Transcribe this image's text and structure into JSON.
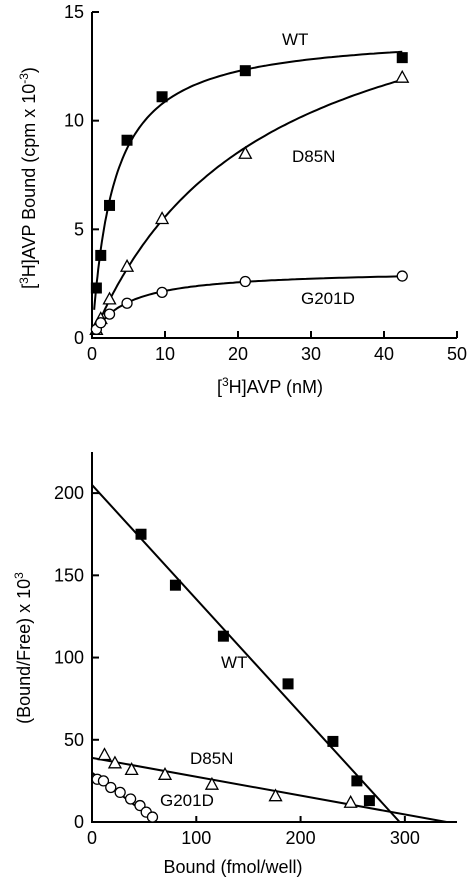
{
  "chart_data": [
    {
      "type": "scatter",
      "xlabel": "[3H]AVP (nM)",
      "ylabel": "[3H]AVP Bound (cpm x 10-3)",
      "xlim": [
        0,
        50
      ],
      "ylim": [
        0,
        15
      ],
      "x_ticks": [
        "0",
        "10",
        "20",
        "30",
        "40",
        "50"
      ],
      "y_ticks": [
        "0",
        "5",
        "10",
        "15"
      ],
      "grid": false,
      "series": [
        {
          "name": "WT",
          "marker": "filled-square",
          "x": [
            0.6,
            1.2,
            2.4,
            4.8,
            9.6,
            21,
            42.5
          ],
          "y": [
            2.3,
            3.8,
            6.1,
            9.1,
            11.1,
            12.3,
            12.9
          ],
          "fit": "saturation"
        },
        {
          "name": "D85N",
          "marker": "open-triangle",
          "x": [
            0.6,
            1.2,
            2.4,
            4.8,
            9.6,
            21,
            42.5
          ],
          "y": [
            0.4,
            0.9,
            1.8,
            3.3,
            5.5,
            8.5,
            12.0
          ],
          "fit": "saturation"
        },
        {
          "name": "G201D",
          "marker": "open-circle",
          "x": [
            0.6,
            1.2,
            2.4,
            4.8,
            9.6,
            21,
            42.5
          ],
          "y": [
            0.4,
            0.7,
            1.1,
            1.6,
            2.1,
            2.6,
            2.85
          ],
          "fit": "saturation"
        }
      ]
    },
    {
      "type": "scatter",
      "xlabel": "Bound (fmol/well)",
      "ylabel": "(Bound/Free) x 103",
      "xlim": [
        0,
        350
      ],
      "ylim": [
        0,
        225
      ],
      "x_ticks": [
        "0",
        "100",
        "200",
        "300"
      ],
      "y_ticks": [
        "0",
        "50",
        "100",
        "150",
        "200"
      ],
      "grid": false,
      "series": [
        {
          "name": "WT",
          "marker": "filled-square",
          "x": [
            47,
            80,
            126,
            188,
            231,
            254,
            266
          ],
          "y": [
            175,
            144,
            113,
            84,
            49,
            25,
            13
          ],
          "fit_line": {
            "x": [
              0,
              295
            ],
            "y": [
              205,
              0
            ]
          }
        },
        {
          "name": "D85N",
          "marker": "open-triangle",
          "x": [
            12,
            22,
            38,
            70,
            115,
            176,
            248
          ],
          "y": [
            41,
            36,
            32,
            29,
            23,
            16,
            12
          ],
          "fit_line": {
            "x": [
              0,
              340
            ],
            "y": [
              39,
              0
            ]
          }
        },
        {
          "name": "G201D",
          "marker": "open-circle",
          "x": [
            5,
            11,
            18,
            27,
            37,
            46,
            52,
            58
          ],
          "y": [
            26,
            25,
            21,
            18,
            14,
            10,
            6,
            3
          ],
          "fit_line": {
            "x": [
              0,
              62
            ],
            "y": [
              30,
              0
            ]
          }
        }
      ]
    }
  ]
}
